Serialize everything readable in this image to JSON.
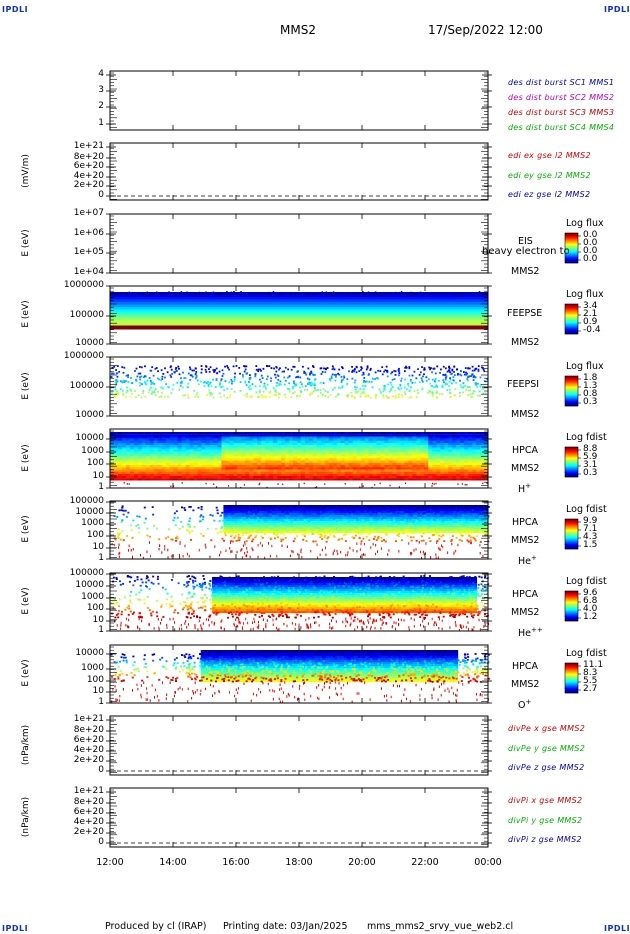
{
  "corners": {
    "tl": "IPDLI",
    "tr": "IPDLI",
    "bl": "IPDLI",
    "br": "IPDLI"
  },
  "header": {
    "spacecraft": "MMS2",
    "datetime": "17/Sep/2022 12:00"
  },
  "footer": {
    "produced": "Produced by cl (IRAP)",
    "printing": "Printing date: 03/Jan/2025",
    "file": "mms_mms2_srvy_vue_web2.cl"
  },
  "colors": {
    "red": "#d00000",
    "magenta": "#c000c0",
    "green": "#00b000",
    "blue": "#0000c0"
  },
  "chart_data": {
    "type": "heatmap",
    "x_ticks": [
      "12:00",
      "14:00",
      "16:00",
      "18:00",
      "20:00",
      "22:00",
      "00:00"
    ],
    "panels": [
      {
        "id": "burst",
        "ylabel": "",
        "yticks": [
          "4",
          "3",
          "2",
          "1"
        ],
        "legend": [
          {
            "text": "des dist burst SC1 MMS1",
            "color": "#0000c0"
          },
          {
            "text": "des dist burst SC2 MMS2",
            "color": "#c000c0"
          },
          {
            "text": "des dist burst SC3 MMS3",
            "color": "#d00000"
          },
          {
            "text": "des dist burst SC4 MMS4",
            "color": "#00b000"
          }
        ]
      },
      {
        "id": "edi",
        "ylabel": "(mV/m)",
        "yticks": [
          "1e+21",
          "8e+20",
          "6e+20",
          "4e+20",
          "2e+20",
          "0"
        ],
        "legend": [
          {
            "text": "edi ex gse l2 MMS2",
            "color": "#d00000"
          },
          {
            "text": "edi ey gse l2 MMS2",
            "color": "#00b000"
          },
          {
            "text": "edi ez gse l2 MMS2",
            "color": "#0000c0"
          }
        ]
      },
      {
        "id": "eis",
        "ylabel": "E (eV)",
        "yticks": [
          "1e+07",
          "1e+06",
          "1e+05",
          "1e+04"
        ],
        "title": "EIS",
        "subtitle": "MMS2",
        "overlay": "heavy electron to",
        "cb_title": "Log flux",
        "cb_ticks": [
          "0.0",
          "0.0",
          "0.0",
          "0.0"
        ]
      },
      {
        "id": "feepse",
        "ylabel": "E (eV)",
        "yticks": [
          "1000000",
          "100000",
          "10000"
        ],
        "title": "FEEPSE",
        "subtitle": "MMS2",
        "cb_title": "Log flux",
        "cb_ticks": [
          "3.4",
          "2.1",
          "0.9",
          "-0.4"
        ]
      },
      {
        "id": "feepsi",
        "ylabel": "E (eV)",
        "yticks": [
          "1000000",
          "100000",
          "10000"
        ],
        "title": "FEEPSI",
        "subtitle": "MMS2",
        "cb_title": "Log flux",
        "cb_ticks": [
          "1.8",
          "1.3",
          "0.8",
          "0.3"
        ]
      },
      {
        "id": "hpca_h",
        "ylabel": "E (eV)",
        "yticks": [
          "10000",
          "1000",
          "100",
          "10",
          "1"
        ],
        "title": "HPCA",
        "subtitle": "MMS2",
        "species": "H",
        "charge": "+",
        "cb_title": "Log fdist",
        "cb_ticks": [
          "8.8",
          "5.9",
          "3.1",
          "0.3"
        ]
      },
      {
        "id": "hpca_he",
        "ylabel": "E (eV)",
        "yticks": [
          "100000",
          "10000",
          "1000",
          "100",
          "10",
          "1"
        ],
        "title": "HPCA",
        "subtitle": "MMS2",
        "species": "He",
        "charge": "+",
        "cb_title": "Log fdist",
        "cb_ticks": [
          "9.9",
          "7.1",
          "4.3",
          "1.5"
        ]
      },
      {
        "id": "hpca_hepp",
        "ylabel": "E (eV)",
        "yticks": [
          "100000",
          "10000",
          "1000",
          "100",
          "10",
          "1"
        ],
        "title": "HPCA",
        "subtitle": "MMS2",
        "species": "He",
        "charge": "++",
        "cb_title": "Log fdist",
        "cb_ticks": [
          "9.6",
          "6.8",
          "4.0",
          "1.2"
        ]
      },
      {
        "id": "hpca_o",
        "ylabel": "E (eV)",
        "yticks": [
          "10000",
          "1000",
          "100",
          "10",
          "1"
        ],
        "title": "HPCA",
        "subtitle": "MMS2",
        "species": "O",
        "charge": "+",
        "cb_title": "Log fdist",
        "cb_ticks": [
          "11.1",
          "8.3",
          "5.5",
          "2.7"
        ]
      },
      {
        "id": "divpe",
        "ylabel": "(nPa/km)",
        "yticks": [
          "1e+21",
          "8e+20",
          "6e+20",
          "4e+20",
          "2e+20",
          "0"
        ],
        "legend": [
          {
            "text": "divPe x gse MMS2",
            "color": "#d00000"
          },
          {
            "text": "divPe y gse MMS2",
            "color": "#00b000"
          },
          {
            "text": "divPe z gse MMS2",
            "color": "#0000c0"
          }
        ]
      },
      {
        "id": "divpi",
        "ylabel": "(nPa/km)",
        "yticks": [
          "1e+21",
          "8e+20",
          "6e+20",
          "4e+20",
          "2e+20",
          "0"
        ],
        "legend": [
          {
            "text": "divPi x gse MMS2",
            "color": "#d00000"
          },
          {
            "text": "divPi y gse MMS2",
            "color": "#00b000"
          },
          {
            "text": "divPi z gse MMS2",
            "color": "#0000c0"
          }
        ]
      }
    ]
  }
}
